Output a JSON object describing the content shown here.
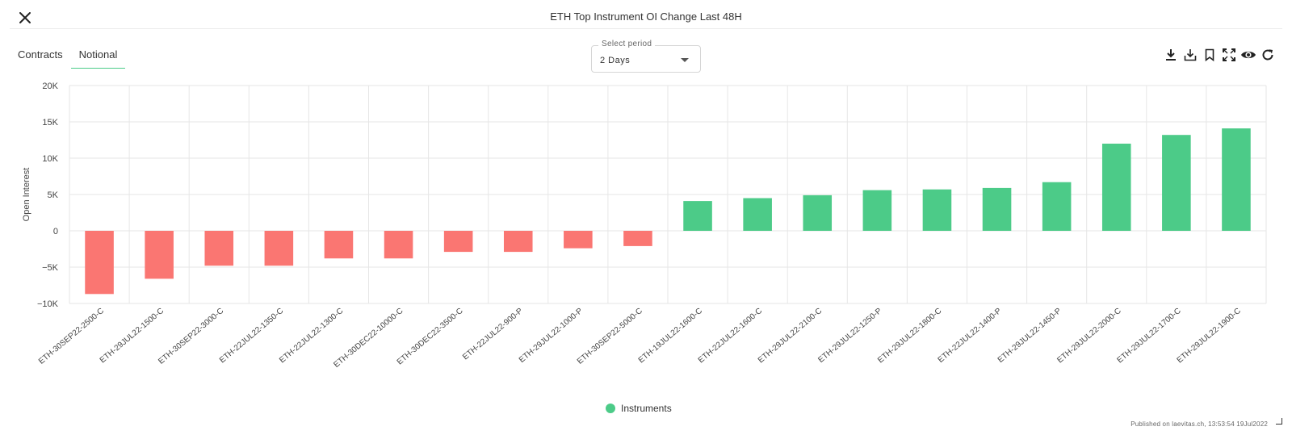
{
  "header": {
    "title": "ETH Top Instrument OI Change Last 48H"
  },
  "tabs": [
    {
      "label": "Contracts",
      "active": false
    },
    {
      "label": "Notional",
      "active": true
    }
  ],
  "period_select": {
    "label": "Select period",
    "value": "2 Days"
  },
  "toolbar": {
    "icons": [
      "download-icon",
      "save-icon",
      "bookmark-icon",
      "fullscreen-icon",
      "eye-icon",
      "refresh-icon"
    ]
  },
  "colors": {
    "positive": "#4ccb88",
    "negative": "#fa7672",
    "accent": "#4ccb88"
  },
  "legend": {
    "label": "Instruments"
  },
  "footer": {
    "published": "Published on laevitas.ch, 13:53:54 19Jul2022"
  },
  "chart_data": {
    "type": "bar",
    "title": "",
    "xlabel": "",
    "ylabel": "Open Interest",
    "ylim": [
      -10000,
      20000
    ],
    "yticks": [
      20000,
      15000,
      10000,
      5000,
      0,
      -5000,
      -10000
    ],
    "ytick_labels": [
      "20K",
      "15K",
      "10K",
      "5K",
      "0",
      "−5K",
      "−10K"
    ],
    "grid": true,
    "legend_position": "bottom-center",
    "categories": [
      "ETH-30SEP22-2500-C",
      "ETH-29JUL22-1500-C",
      "ETH-30SEP22-3000-C",
      "ETH-22JUL22-1350-C",
      "ETH-22JUL22-1300-C",
      "ETH-30DEC22-10000-C",
      "ETH-30DEC22-3500-C",
      "ETH-22JUL22-900-P",
      "ETH-29JUL22-1000-P",
      "ETH-30SEP22-5000-C",
      "ETH-19JUL22-1600-C",
      "ETH-22JUL22-1600-C",
      "ETH-29JUL22-2100-C",
      "ETH-29JUL22-1250-P",
      "ETH-29JUL22-1800-C",
      "ETH-22JUL22-1400-P",
      "ETH-29JUL22-1450-P",
      "ETH-29JUL22-2000-C",
      "ETH-29JUL22-1700-C",
      "ETH-29JUL22-1900-C"
    ],
    "series": [
      {
        "name": "Instruments",
        "values": [
          -8700,
          -6600,
          -4800,
          -4800,
          -3800,
          -3800,
          -2900,
          -2900,
          -2400,
          -2100,
          4100,
          4500,
          4900,
          5600,
          5700,
          5900,
          6700,
          12000,
          13200,
          14100
        ]
      }
    ]
  }
}
